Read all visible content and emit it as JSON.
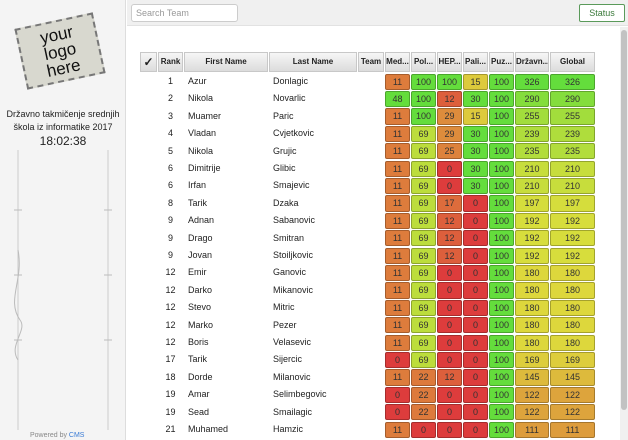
{
  "sidebar": {
    "logo": "your logo here",
    "contest": "Državno takmičenje srednjih škola iz informatike 2017",
    "clock": "18:02:38",
    "footer_prefix": "Powered by",
    "footer_link": "CMS"
  },
  "top": {
    "search_placeholder": "Search Team",
    "status_button": "Status"
  },
  "table": {
    "header": [
      "✓",
      "Rank",
      "First Name",
      "Last Name",
      "Team",
      "Med...",
      "Pol...",
      "HEP...",
      "Pali...",
      "Puz...",
      "Državn...",
      "Global"
    ],
    "rows": [
      [
        1,
        "Azur",
        "Donlagic",
        11,
        100,
        100,
        15,
        100,
        326,
        326
      ],
      [
        2,
        "Nikola",
        "Novarlic",
        48,
        100,
        12,
        30,
        100,
        290,
        290
      ],
      [
        3,
        "Muamer",
        "Paric",
        11,
        100,
        29,
        15,
        100,
        255,
        255
      ],
      [
        4,
        "Vladan",
        "Cvjetkovic",
        11,
        69,
        29,
        30,
        100,
        239,
        239
      ],
      [
        5,
        "Nikola",
        "Grujic",
        11,
        69,
        25,
        30,
        100,
        235,
        235
      ],
      [
        6,
        "Dimitrije",
        "Glibic",
        11,
        69,
        0,
        30,
        100,
        210,
        210
      ],
      [
        6,
        "Irfan",
        "Smajevic",
        11,
        69,
        0,
        30,
        100,
        210,
        210
      ],
      [
        8,
        "Tarik",
        "Dzaka",
        11,
        69,
        17,
        0,
        100,
        197,
        197
      ],
      [
        9,
        "Adnan",
        "Sabanovic",
        11,
        69,
        12,
        0,
        100,
        192,
        192
      ],
      [
        9,
        "Drago",
        "Smitran",
        11,
        69,
        12,
        0,
        100,
        192,
        192
      ],
      [
        9,
        "Jovan",
        "Stoiljkovic",
        11,
        69,
        12,
        0,
        100,
        192,
        192
      ],
      [
        12,
        "Emir",
        "Ganovic",
        11,
        69,
        0,
        0,
        100,
        180,
        180
      ],
      [
        12,
        "Darko",
        "Mikanovic",
        11,
        69,
        0,
        0,
        100,
        180,
        180
      ],
      [
        12,
        "Stevo",
        "Mitric",
        11,
        69,
        0,
        0,
        100,
        180,
        180
      ],
      [
        12,
        "Marko",
        "Pezer",
        11,
        69,
        0,
        0,
        100,
        180,
        180
      ],
      [
        12,
        "Boris",
        "Velasevic",
        11,
        69,
        0,
        0,
        100,
        180,
        180
      ],
      [
        17,
        "Tarik",
        "Sijercic",
        0,
        69,
        0,
        0,
        100,
        169,
        169
      ],
      [
        18,
        "Dorde",
        "Milanovic",
        11,
        22,
        12,
        0,
        100,
        145,
        145
      ],
      [
        19,
        "Amar",
        "Selimbegovic",
        0,
        22,
        0,
        0,
        100,
        122,
        122
      ],
      [
        19,
        "Sead",
        "Smailagic",
        0,
        22,
        0,
        0,
        100,
        122,
        122
      ],
      [
        21,
        "Muhamed",
        "Hamzic",
        11,
        0,
        0,
        0,
        100,
        111,
        111
      ]
    ]
  }
}
